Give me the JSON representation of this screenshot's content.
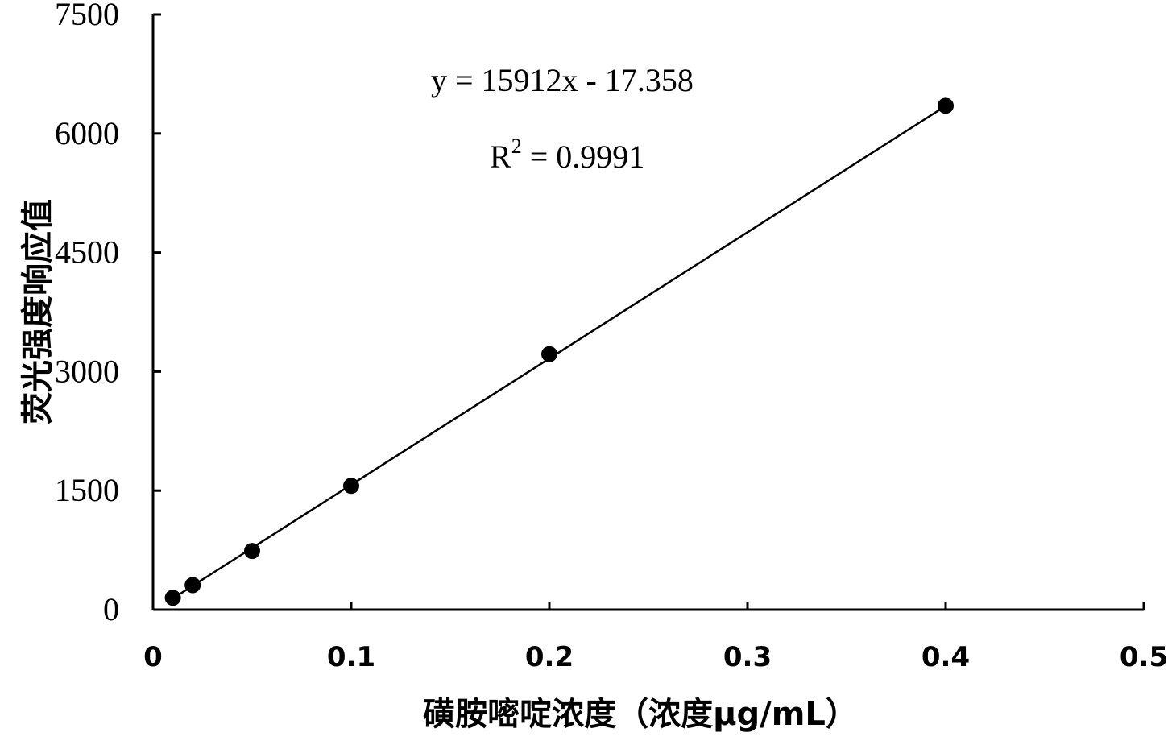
{
  "chart_data": {
    "type": "scatter",
    "xlabel": "磺胺嘧啶浓度（浓度μg/mL）",
    "ylabel": "荧光强度响应值",
    "xlim": [
      0,
      0.5
    ],
    "ylim": [
      0,
      7500
    ],
    "x_ticks": [
      "0",
      "0.1",
      "0.2",
      "0.3",
      "0.4",
      "0.5"
    ],
    "y_ticks": [
      "0",
      "1500",
      "3000",
      "4500",
      "6000",
      "7500"
    ],
    "x_tick_values": [
      0,
      0.1,
      0.2,
      0.3,
      0.4,
      0.5
    ],
    "y_tick_values": [
      0,
      1500,
      3000,
      4500,
      6000,
      7500
    ],
    "grid": false,
    "series": [
      {
        "x": [
          0.01,
          0.02,
          0.05,
          0.1,
          0.2,
          0.4
        ],
        "y": [
          150,
          310,
          740,
          1560,
          3220,
          6350
        ]
      }
    ],
    "trendline": {
      "slope": 15912,
      "intercept": -17.358,
      "x_range": [
        0.01,
        0.4
      ]
    },
    "annotations": {
      "equation": "y = 15912x - 17.358",
      "r2_prefix": "R",
      "r2_sup": "2",
      "r2_value": " = 0.9991"
    },
    "colors": {
      "marker": "#000000",
      "line": "#000000",
      "axis": "#000000"
    }
  }
}
